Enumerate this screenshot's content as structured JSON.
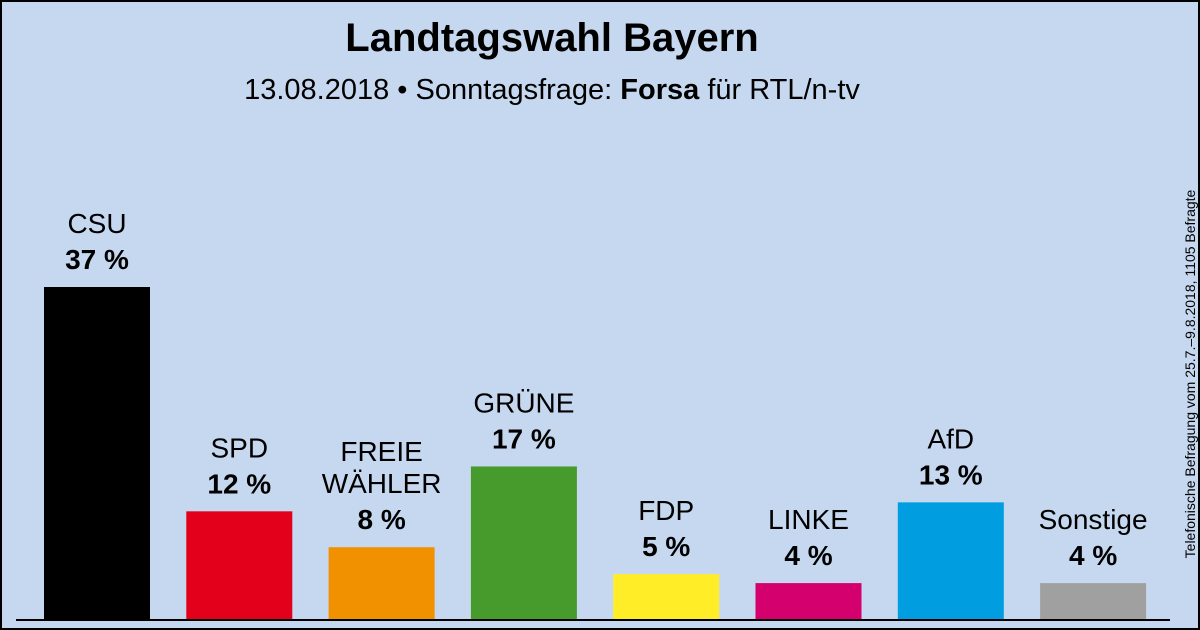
{
  "header": {
    "title": "Landtagswahl Bayern",
    "subtitle_date": "13.08.2018",
    "subtitle_separator": " • ",
    "subtitle_label": "Sonntagsfrage: ",
    "subtitle_institute": "Forsa",
    "subtitle_client": " für RTL/n-tv"
  },
  "side_note": "Telefonische Befragung vom 25.7.–9.8.2018, 1105 Befragte",
  "chart_data": {
    "type": "bar",
    "unit": "%",
    "categories": [
      "CSU",
      "SPD",
      "FREIE WÄHLER",
      "GRÜNE",
      "FDP",
      "LINKE",
      "AfD",
      "Sonstige"
    ],
    "label_lines": [
      [
        "CSU"
      ],
      [
        "SPD"
      ],
      [
        "FREIE",
        "WÄHLER"
      ],
      [
        "GRÜNE"
      ],
      [
        "FDP"
      ],
      [
        "LINKE"
      ],
      [
        "AfD"
      ],
      [
        "Sonstige"
      ]
    ],
    "values": [
      37,
      12,
      8,
      17,
      5,
      4,
      13,
      4
    ],
    "value_labels": [
      "37 %",
      "12 %",
      "8 %",
      "17 %",
      "5 %",
      "4 %",
      "13 %",
      "4 %"
    ],
    "colors": [
      "#000000",
      "#e3001b",
      "#f29100",
      "#479a2c",
      "#ffed27",
      "#d3006e",
      "#009ee0",
      "#a0a0a0"
    ],
    "ylim": [
      0,
      37
    ],
    "grid": false,
    "legend": "none"
  }
}
